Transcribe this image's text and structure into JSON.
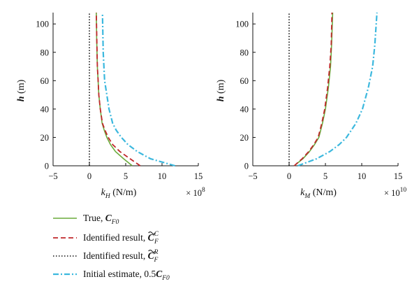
{
  "chart_data": [
    {
      "type": "line",
      "xlabel": "k_H (N/m)",
      "xlabel_main": "k",
      "xlabel_sub": "H",
      "xlabel_unit": " (N/m)",
      "ylabel": "h (m)",
      "ylabel_main": "h",
      "ylabel_unit": " (m)",
      "x_multiplier": "× 10",
      "x_multiplier_exp": "8",
      "xlim": [
        -5,
        15
      ],
      "ylim": [
        0,
        108
      ],
      "xticks": [
        "−5",
        "0",
        "5",
        "10",
        "15"
      ],
      "xtick_values": [
        -5,
        0,
        5,
        10,
        15
      ],
      "yticks": [
        "0",
        "20",
        "40",
        "60",
        "80",
        "100"
      ],
      "ytick_values": [
        0,
        20,
        40,
        60,
        80,
        100
      ],
      "grid": false,
      "series": [
        {
          "key": "true",
          "color": "#6aab3c",
          "dash": "",
          "width": 1.6,
          "x": [
            5.9,
            4.7,
            3.6,
            2.9,
            2.4,
            2.05,
            1.75,
            1.5,
            1.3,
            1.2,
            1.1,
            1.0,
            0.95
          ],
          "y": [
            0,
            5,
            10,
            15,
            20,
            25,
            30,
            40,
            50,
            60,
            70,
            90,
            108
          ]
        },
        {
          "key": "identified_c",
          "color": "#c0282b",
          "dash": "7,4",
          "width": 1.8,
          "x": [
            7.0,
            5.6,
            4.2,
            3.2,
            2.6,
            2.15,
            1.8,
            1.5,
            1.3,
            1.2,
            1.1,
            1.02,
            0.95
          ],
          "y": [
            0,
            5,
            10,
            15,
            20,
            25,
            30,
            40,
            50,
            60,
            70,
            90,
            108
          ]
        },
        {
          "key": "identified_r",
          "color": "#111111",
          "dash": "1.5,2.5",
          "width": 1.6,
          "x": [
            0,
            0
          ],
          "y": [
            0,
            108
          ]
        },
        {
          "key": "initial",
          "color": "#3cb8de",
          "dash": "8,3,2,3",
          "width": 2.2,
          "x": [
            11.8,
            8.4,
            6.6,
            5.3,
            4.4,
            3.7,
            3.2,
            2.7,
            2.4,
            2.1,
            1.9,
            1.8
          ],
          "y": [
            0,
            5,
            10,
            15,
            20,
            25,
            30,
            40,
            50,
            60,
            80,
            108
          ]
        }
      ]
    },
    {
      "type": "line",
      "xlabel": "k_M (N/m)",
      "xlabel_main": "k",
      "xlabel_sub": "M",
      "xlabel_unit": " (N/m)",
      "ylabel": "h (m)",
      "ylabel_main": "h",
      "ylabel_unit": " (m)",
      "x_multiplier": "× 10",
      "x_multiplier_exp": "10",
      "xlim": [
        -5,
        15
      ],
      "ylim": [
        0,
        108
      ],
      "xticks": [
        "−5",
        "0",
        "5",
        "10",
        "15"
      ],
      "xtick_values": [
        -5,
        0,
        5,
        10,
        15
      ],
      "yticks": [
        "0",
        "20",
        "40",
        "60",
        "80",
        "100"
      ],
      "ytick_values": [
        0,
        20,
        40,
        60,
        80,
        100
      ],
      "grid": false,
      "series": [
        {
          "key": "true",
          "color": "#6aab3c",
          "dash": "",
          "width": 1.6,
          "x": [
            0.7,
            1.9,
            2.8,
            3.5,
            4.1,
            4.6,
            5.0,
            5.4,
            5.7,
            5.85,
            6.0
          ],
          "y": [
            0,
            5,
            10,
            15,
            20,
            30,
            40,
            55,
            70,
            85,
            108
          ]
        },
        {
          "key": "identified_c",
          "color": "#c0282b",
          "dash": "7,4",
          "width": 1.8,
          "x": [
            0.7,
            1.8,
            2.7,
            3.4,
            4.0,
            4.5,
            4.9,
            5.3,
            5.6,
            5.8,
            5.9
          ],
          "y": [
            0,
            5,
            10,
            15,
            20,
            30,
            40,
            55,
            70,
            85,
            108
          ]
        },
        {
          "key": "identified_r",
          "color": "#111111",
          "dash": "1.5,2.5",
          "width": 1.6,
          "x": [
            0,
            0
          ],
          "y": [
            0,
            108
          ]
        },
        {
          "key": "initial",
          "color": "#3cb8de",
          "dash": "8,3,2,3",
          "width": 2.2,
          "x": [
            1.2,
            3.8,
            5.6,
            6.9,
            7.9,
            9.2,
            10.1,
            10.9,
            11.5,
            11.8,
            12.1
          ],
          "y": [
            0,
            5,
            10,
            15,
            20,
            30,
            40,
            55,
            70,
            85,
            108
          ]
        }
      ]
    }
  ],
  "legend": [
    {
      "key": "true",
      "text": "True, ",
      "math": "C",
      "math_sub": "F0",
      "tilde": false,
      "sup": ""
    },
    {
      "key": "identified_c",
      "text": "Identified result, ",
      "math": "C",
      "math_sub": "F",
      "tilde": true,
      "sup": "C"
    },
    {
      "key": "identified_r",
      "text": "Identified result, ",
      "math": "C",
      "math_sub": "F",
      "tilde": true,
      "sup": "R"
    },
    {
      "key": "initial",
      "text": "Initial estimate, 0.5",
      "math": "C",
      "math_sub": "F0",
      "tilde": false,
      "sup": ""
    }
  ]
}
